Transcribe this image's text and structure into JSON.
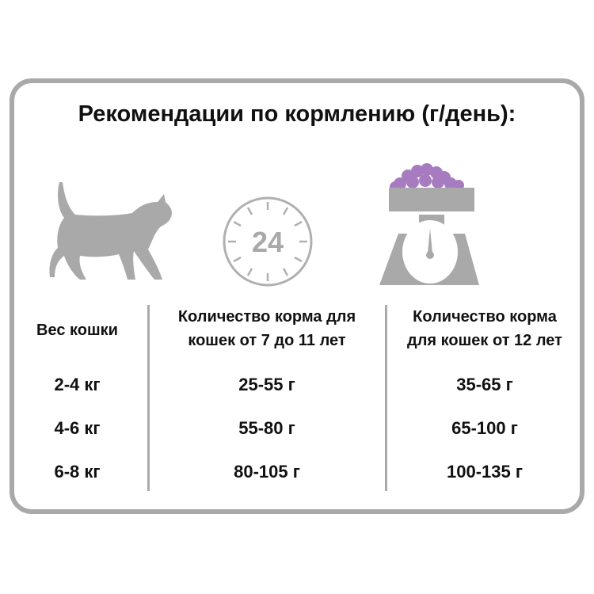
{
  "title": "Рекомендации по кормлению (г/день):",
  "icons": {
    "cat": "cat-icon",
    "clock": "clock-24-icon",
    "scale": "scale-icon",
    "clock_label": "24"
  },
  "colors": {
    "gray": "#a9a9a9",
    "food": "#a77bbf"
  },
  "table": {
    "headers": [
      "Вес кошки",
      "Количество корма для кошек от 7 до 11 лет",
      "Количество корма для кошек от 12 лет"
    ],
    "header_lines": [
      [
        "Вес кошки"
      ],
      [
        "Количество корма для",
        "кошек от 7 до 11 лет"
      ],
      [
        "Количество корма",
        "для кошек от 12 лет"
      ]
    ],
    "rows": [
      [
        "2-4 кг",
        "25-55 г",
        "35-65 г"
      ],
      [
        "4-6 кг",
        "55-80 г",
        "65-100 г"
      ],
      [
        "6-8 кг",
        "80-105 г",
        "100-135 г"
      ]
    ]
  }
}
